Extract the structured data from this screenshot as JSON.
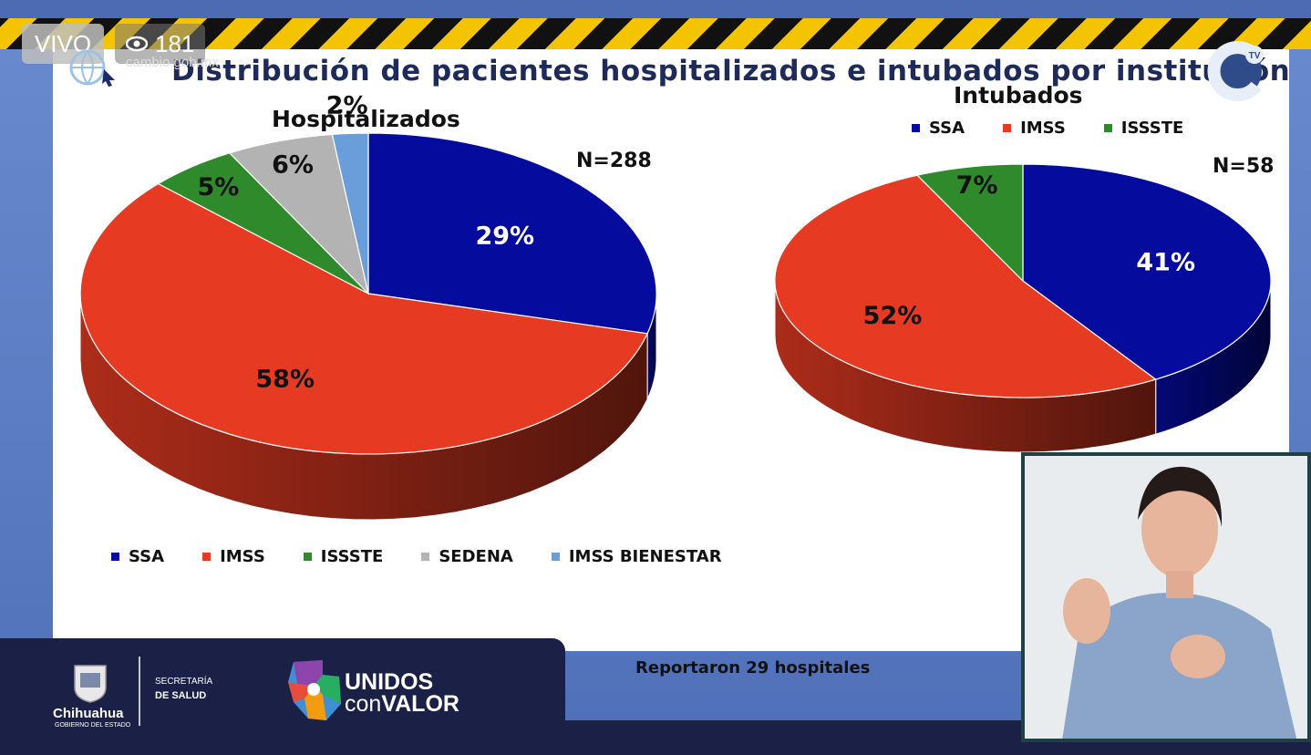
{
  "stream": {
    "live_label": "VIVO",
    "viewer_count": "181",
    "site": "cambio.gob.mx"
  },
  "slide": {
    "title": "Distribución de pacientes hospitalizados e intubados por institución",
    "footer_note": "Reportaron 29 hospitales"
  },
  "branding": {
    "state_name": "Chihuahua",
    "state_sub": "GOBIERNO DEL ESTADO",
    "dept_line1": "SECRETARÍA",
    "dept_line2": "DE SALUD",
    "campaign_line1": "UNIDOS",
    "campaign_con": "con",
    "campaign_valor": "VALOR",
    "tv_badge": "TV"
  },
  "chart_data": [
    {
      "type": "pie",
      "title": "Hospitalizados",
      "n_label": "N=288",
      "categories": [
        "SSA",
        "IMSS",
        "ISSSTE",
        "SEDENA",
        "IMSS BIENESTAR"
      ],
      "values": [
        29,
        58,
        5,
        6,
        2
      ],
      "labels": [
        "29%",
        "58%",
        "5%",
        "6%",
        "2%"
      ],
      "colors": [
        "#050b9c",
        "#e63b22",
        "#2f8a2c",
        "#b3b3b3",
        "#6a9edb"
      ],
      "label_colors": [
        "#ffffff",
        "#111111",
        "#111111",
        "#111111",
        "#111111"
      ],
      "legend_position": "bottom"
    },
    {
      "type": "pie",
      "title": "Intubados",
      "n_label": "N=58",
      "categories": [
        "SSA",
        "IMSS",
        "ISSSTE"
      ],
      "values": [
        41,
        52,
        7
      ],
      "labels": [
        "41%",
        "52%",
        "7%"
      ],
      "colors": [
        "#050b9c",
        "#e63b22",
        "#2f8a2c"
      ],
      "label_colors": [
        "#ffffff",
        "#111111",
        "#111111"
      ],
      "legend_position": "top"
    }
  ]
}
